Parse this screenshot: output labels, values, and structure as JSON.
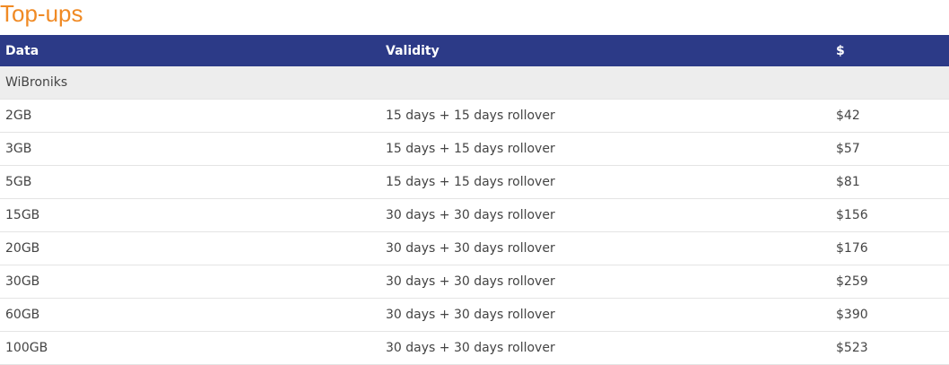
{
  "title": "Top-ups",
  "headers": [
    "Data",
    "Validity",
    "$"
  ],
  "group": "WiBroniks",
  "rows": [
    [
      "2GB",
      "15 days + 15 days rollover",
      "$42"
    ],
    [
      "3GB",
      "15 days + 15 days rollover",
      "$57"
    ],
    [
      "5GB",
      "15 days + 15 days rollover",
      "$81"
    ],
    [
      "15GB",
      "30 days + 30 days rollover",
      "$156"
    ],
    [
      "20GB",
      "30 days + 30 days rollover",
      "$176"
    ],
    [
      "30GB",
      "30 days + 30 days rollover",
      "$259"
    ],
    [
      "60GB",
      "30 days + 30 days rollover",
      "$390"
    ],
    [
      "100GB",
      "30 days + 30 days rollover",
      "$523"
    ]
  ]
}
